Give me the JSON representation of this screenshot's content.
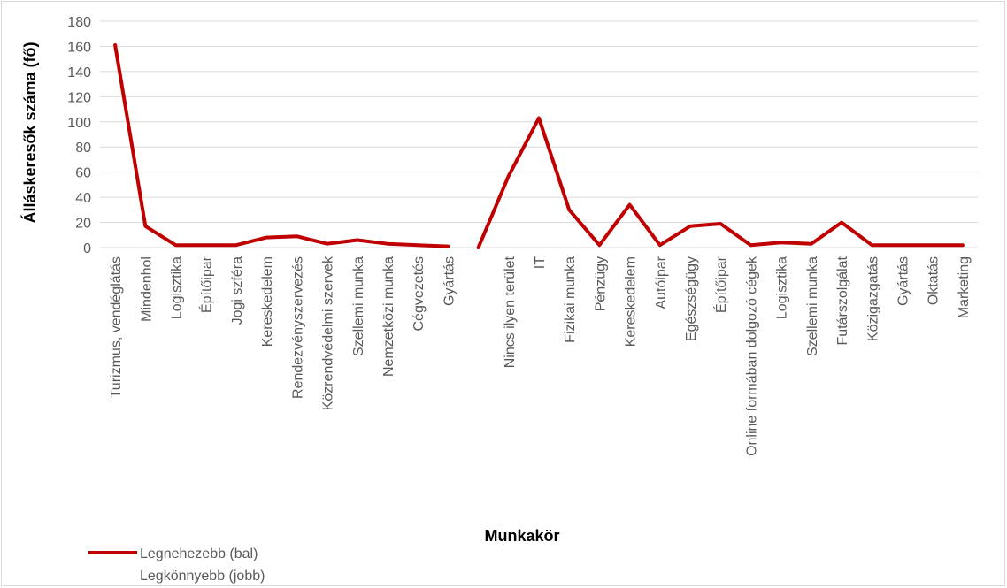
{
  "chart_data": {
    "type": "line",
    "title": "",
    "xlabel": "Munkakör",
    "ylabel": "Álláskeresők száma (fő)",
    "ylim": [
      0,
      180
    ],
    "yticks": [
      0,
      20,
      40,
      60,
      80,
      100,
      120,
      140,
      160,
      180
    ],
    "grid": true,
    "legend_position": "bottom-left",
    "categories": [
      "Turizmus, vendéglátás",
      "Mindenhol",
      "Logisztika",
      "Építőipar",
      "Jogi szféra",
      "Kereskedelem",
      "Rendezvényszervezés",
      "Közrendvédelmi szervek",
      "Szellemi munka",
      "Nemzetközi munka",
      "Cégvezetés",
      "Gyártás",
      "",
      "Nincs ilyen terület",
      "IT",
      "Fizikai munka",
      "Pénzügy",
      "Kereskedelem",
      "Autóipar",
      "Egészségügy",
      "Építőipar",
      "Online formában dolgozó cégek",
      "Logisztika",
      "Szellemi munka",
      "Futárszolgálat",
      "Közigazgatás",
      "Gyártás",
      "Oktatás",
      "Marketing"
    ],
    "series": [
      {
        "name": "Legnehezebb (bal)",
        "color": "#c00000",
        "values": [
          161,
          17,
          2,
          2,
          2,
          8,
          9,
          3,
          6,
          3,
          2,
          1,
          null,
          null,
          null,
          null,
          null,
          null,
          null,
          null,
          null,
          null,
          null,
          null,
          null,
          null,
          null,
          null,
          null
        ]
      },
      {
        "name": "Legkönnyebb (jobb)",
        "color": "#c00000",
        "values": [
          null,
          null,
          null,
          null,
          null,
          null,
          null,
          null,
          null,
          null,
          null,
          null,
          0,
          57,
          103,
          30,
          2,
          34,
          2,
          17,
          19,
          2,
          4,
          3,
          20,
          2,
          2,
          2,
          2
        ]
      }
    ]
  }
}
